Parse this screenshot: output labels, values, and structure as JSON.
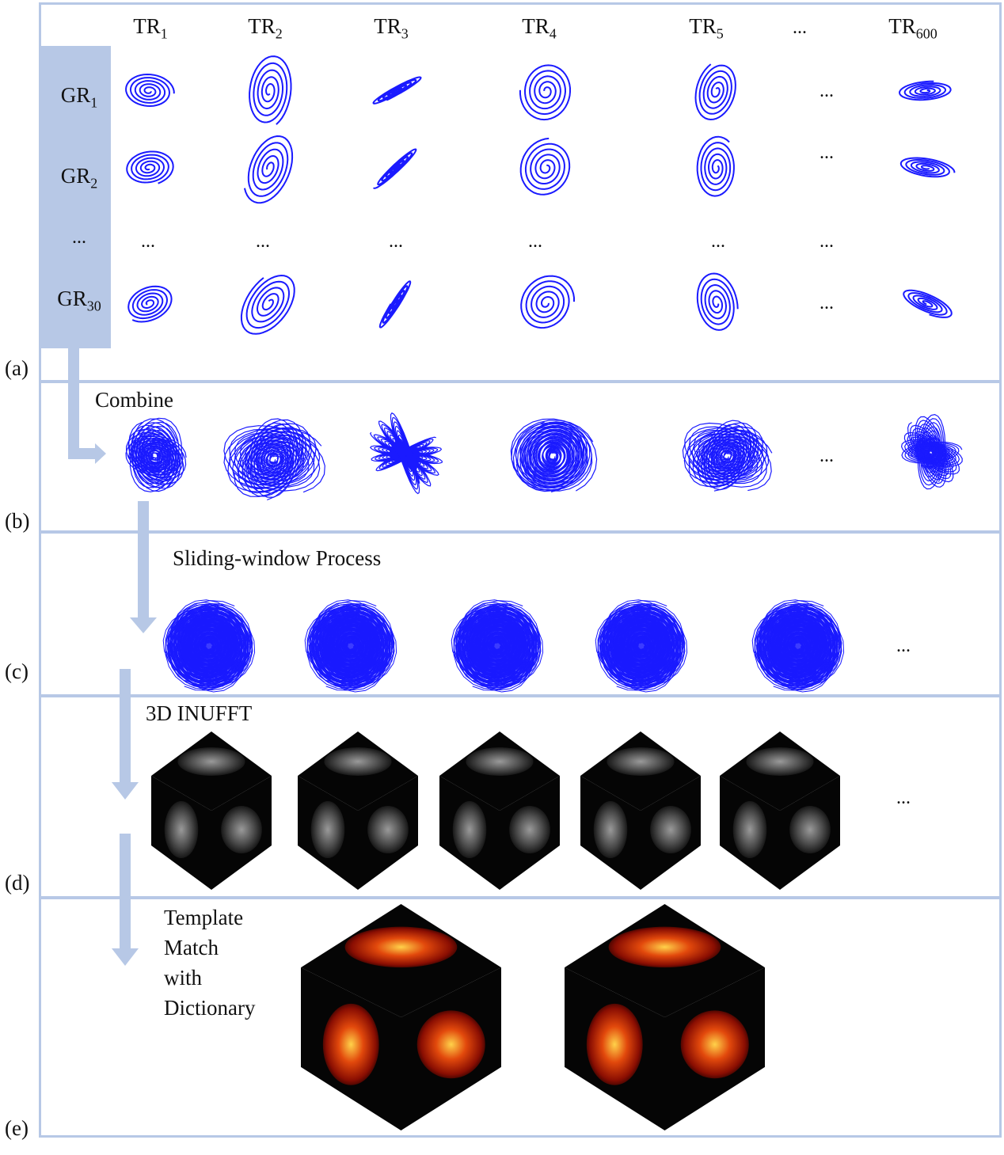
{
  "panels": {
    "a": "(a)",
    "b": "(b)",
    "c": "(c)",
    "d": "(d)",
    "e": "(e)"
  },
  "tr_headers": [
    {
      "base": "TR",
      "sub": "1"
    },
    {
      "base": "TR",
      "sub": "2"
    },
    {
      "base": "TR",
      "sub": "3"
    },
    {
      "base": "TR",
      "sub": "4"
    },
    {
      "base": "TR",
      "sub": "5"
    },
    {
      "base": "...",
      "sub": ""
    },
    {
      "base": "TR",
      "sub": "600"
    }
  ],
  "gr_rows": [
    {
      "base": "GR",
      "sub": "1"
    },
    {
      "base": "GR",
      "sub": "2"
    },
    {
      "base": "...",
      "sub": ""
    },
    {
      "base": "GR",
      "sub": "30"
    }
  ],
  "ellipsis": "...",
  "steps": {
    "combine": "Combine",
    "sliding": "Sliding-window Process",
    "inufft": "3D INUFFT",
    "template_lines": [
      "Template",
      "Match",
      "with",
      "Dictionary"
    ]
  },
  "colors": {
    "trajectory": "#1a1aff",
    "panel_border": "#b7c8e6",
    "arrow": "#b7c8e6"
  }
}
